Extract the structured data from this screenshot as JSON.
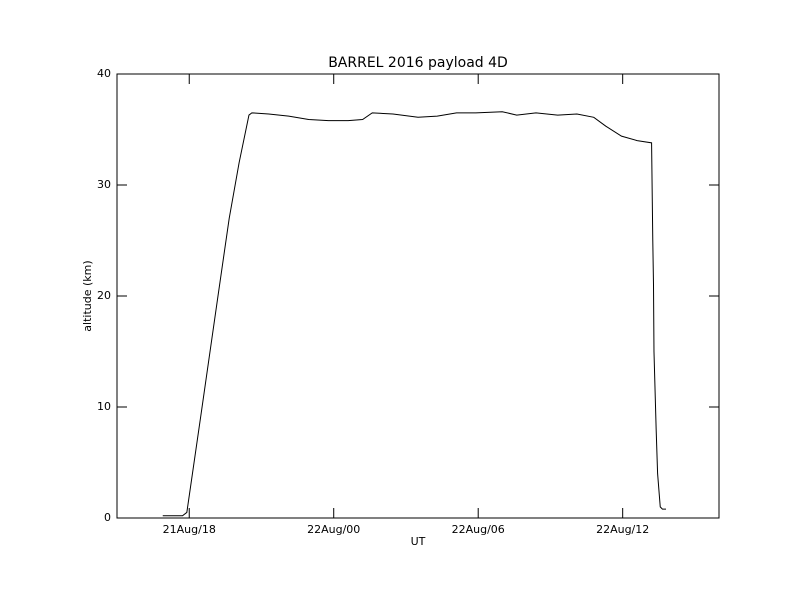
{
  "chart_data": {
    "type": "line",
    "title": "BARREL 2016 payload 4D",
    "x_label": "UT",
    "y_label": "altitude (km)",
    "x": [
      16.9,
      17.72,
      17.9,
      18.5,
      19.2,
      19.66,
      20.07,
      20.48,
      20.6,
      21.3,
      22.13,
      22.96,
      23.78,
      24.6,
      25.2,
      25.6,
      26.46,
      27.5,
      28.3,
      29.1,
      29.9,
      31.0,
      31.6,
      32.4,
      33.3,
      34.1,
      34.8,
      35.3,
      35.95,
      36.6,
      37.2,
      37.23,
      37.25,
      37.28,
      37.3,
      37.39,
      37.45,
      37.56,
      37.65,
      37.8
    ],
    "values": [
      0.2,
      0.2,
      0.5,
      9.5,
      20.1,
      27,
      32,
      36.3,
      36.5,
      36.4,
      36.2,
      35.9,
      35.8,
      35.8,
      35.9,
      36.5,
      36.4,
      36.1,
      36.2,
      36.5,
      36.5,
      36.6,
      36.3,
      36.5,
      36.3,
      36.4,
      36.1,
      35.3,
      34.4,
      34.0,
      33.8,
      28.5,
      25,
      21,
      15,
      8,
      4,
      1,
      0.8,
      0.8
    ],
    "color": "#000000",
    "xlim": [
      15,
      40
    ],
    "xticks": [
      {
        "value": 18,
        "label": "21Aug/18"
      },
      {
        "value": 24,
        "label": "22Aug/00"
      },
      {
        "value": 30,
        "label": "22Aug/06"
      },
      {
        "value": 36,
        "label": "22Aug/12"
      }
    ],
    "ylim": [
      0,
      40
    ],
    "yticks": [
      0,
      10,
      20,
      30,
      40
    ],
    "grid": false
  }
}
